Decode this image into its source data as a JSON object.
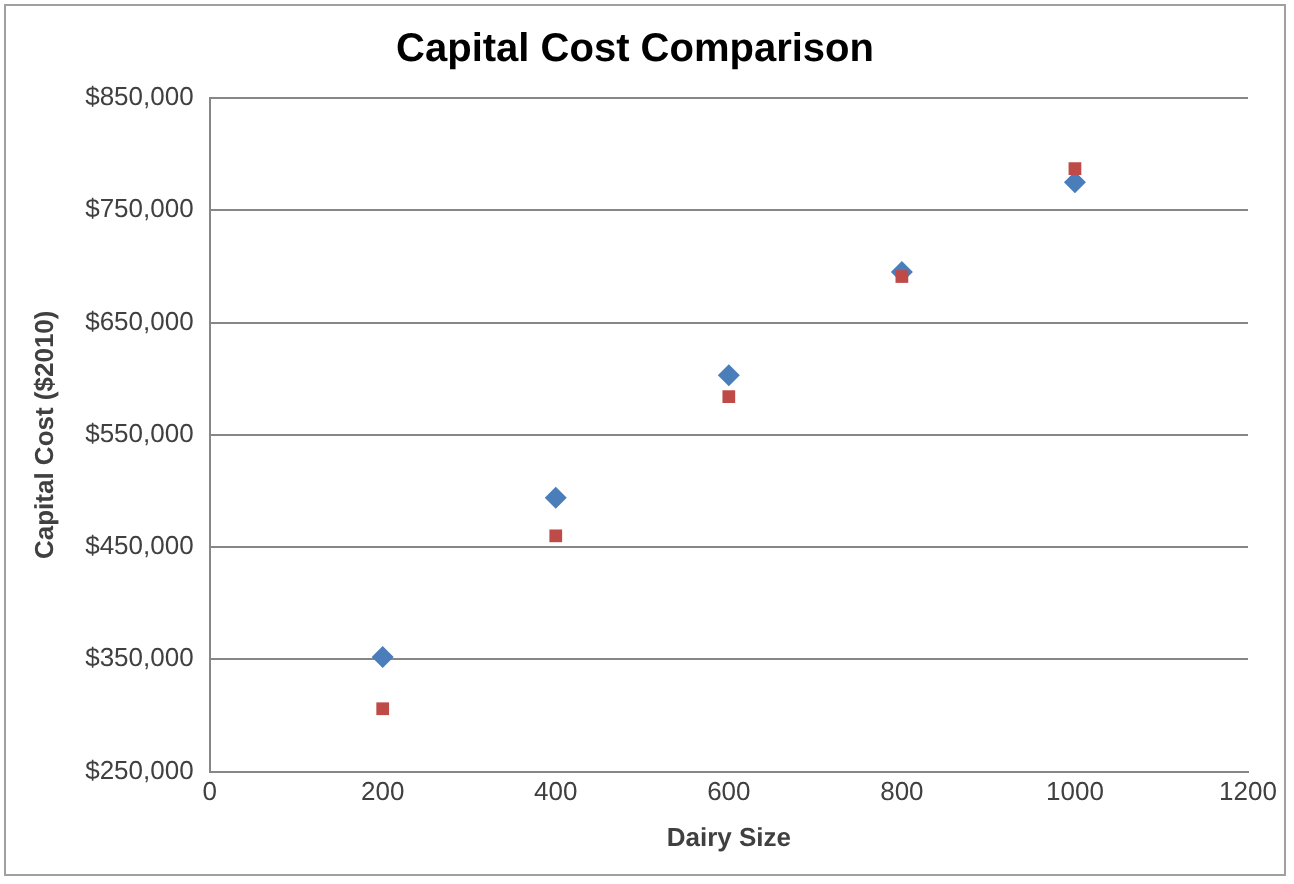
{
  "chart_data": {
    "type": "scatter",
    "title": "Capital Cost Comparison",
    "xlabel": "Dairy Size",
    "ylabel": "Capital Cost ($2010)",
    "xlim": [
      0,
      1200
    ],
    "xticks": [
      0,
      200,
      400,
      600,
      800,
      1000,
      1200
    ],
    "ylim": [
      250000,
      850000
    ],
    "yticks": [
      {
        "value": 250000,
        "label": "$250,000"
      },
      {
        "value": 350000,
        "label": "$350,000"
      },
      {
        "value": 450000,
        "label": "$450,000"
      },
      {
        "value": 550000,
        "label": "$550,000"
      },
      {
        "value": 650000,
        "label": "$650,000"
      },
      {
        "value": 750000,
        "label": "$750,000"
      },
      {
        "value": 850000,
        "label": "$850,000"
      }
    ],
    "grid": "y",
    "series": [
      {
        "color": "#4a7ebb",
        "marker": "diamond",
        "x": [
          200,
          400,
          600,
          800,
          1000
        ],
        "values": [
          352000,
          494000,
          603000,
          695000,
          775000
        ]
      },
      {
        "color": "#be4b48",
        "marker": "square",
        "x": [
          200,
          400,
          600,
          800,
          1000
        ],
        "values": [
          306000,
          460000,
          584000,
          691000,
          787000
        ]
      }
    ]
  }
}
